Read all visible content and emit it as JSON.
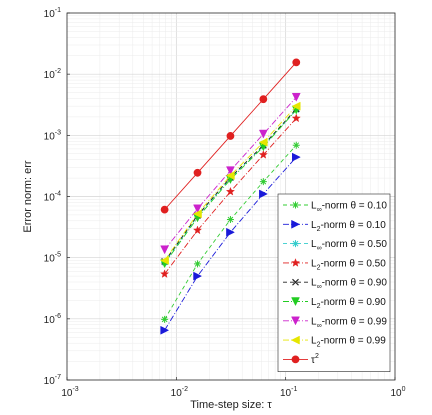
{
  "chart_data": {
    "type": "line",
    "xscale": "log",
    "yscale": "log",
    "xlim": [
      0.001,
      1
    ],
    "ylim": [
      1e-07,
      0.1
    ],
    "grid": true,
    "minor_grid": true,
    "legend_position": "bottom-right",
    "xlabel": "Time-step size: τ",
    "ylabel": "Error norm: err",
    "xticks": [
      {
        "value": 0.001,
        "base": "10",
        "exp": "-3"
      },
      {
        "value": 0.01,
        "base": "10",
        "exp": "-2"
      },
      {
        "value": 0.1,
        "base": "10",
        "exp": "-1"
      },
      {
        "value": 1,
        "base": "10",
        "exp": "0"
      }
    ],
    "yticks": [
      {
        "value": 1e-07,
        "base": "10",
        "exp": "-7"
      },
      {
        "value": 1e-06,
        "base": "10",
        "exp": "-6"
      },
      {
        "value": 1e-05,
        "base": "10",
        "exp": "-5"
      },
      {
        "value": 0.0001,
        "base": "10",
        "exp": "-4"
      },
      {
        "value": 0.001,
        "base": "10",
        "exp": "-3"
      },
      {
        "value": 0.01,
        "base": "10",
        "exp": "-2"
      },
      {
        "value": 0.1,
        "base": "10",
        "exp": "-1"
      }
    ],
    "x": [
      0.0078125,
      0.015625,
      0.03125,
      0.0625,
      0.125
    ],
    "series": [
      {
        "name": "L∞-norm θ = 0.10",
        "base": "L",
        "sub": "∞",
        "suffix": "-norm θ = 0.10",
        "color": "#33cc33",
        "dash": "4,3",
        "marker": "asterisk",
        "values": [
          9.8e-07,
          7.9e-06,
          4.2e-05,
          0.000175,
          0.00069
        ]
      },
      {
        "name": "L2-norm θ = 0.10",
        "base": "L",
        "sub": "2",
        "suffix": "-norm θ = 0.10",
        "color": "#1a1ad9",
        "dash": "6,2,1,2",
        "marker": "triangle-right",
        "values": [
          6.5e-07,
          5e-06,
          2.6e-05,
          0.00011,
          0.00044
        ]
      },
      {
        "name": "L∞-norm θ = 0.50",
        "base": "L",
        "sub": "∞",
        "suffix": "-norm θ = 0.50",
        "color": "#33cccc",
        "dash": "4,3",
        "marker": "asterisk",
        "values": [
          8.3e-06,
          4.8e-05,
          0.0002,
          0.00067,
          0.0026
        ]
      },
      {
        "name": "L2-norm θ = 0.50",
        "base": "L",
        "sub": "2",
        "suffix": "-norm θ = 0.50",
        "color": "#e02020",
        "dash": "6,2,1,2",
        "marker": "star",
        "values": [
          5.4e-06,
          2.8e-05,
          0.00012,
          0.00048,
          0.0019
        ]
      },
      {
        "name": "L∞-norm θ = 0.90",
        "base": "L",
        "sub": "∞",
        "suffix": "-norm θ = 0.90",
        "color": "#222222",
        "dash": "4,3",
        "marker": "x",
        "values": [
          8.7e-06,
          4.9e-05,
          0.000205,
          0.00069,
          0.0027
        ]
      },
      {
        "name": "L2-norm θ = 0.90",
        "base": "L",
        "sub": "2",
        "suffix": "-norm θ = 0.90",
        "color": "#22cc22",
        "dash": "6,2,1,2",
        "marker": "triangle-down",
        "values": [
          8e-06,
          4.5e-05,
          0.00019,
          0.00065,
          0.0026
        ]
      },
      {
        "name": "L∞-norm θ = 0.99",
        "base": "L",
        "sub": "∞",
        "suffix": "-norm θ = 0.99",
        "color": "#cc22cc",
        "dash": "6,2,1,2",
        "marker": "triangle-down",
        "values": [
          1.35e-05,
          6.3e-05,
          0.000265,
          0.00105,
          0.0042
        ]
      },
      {
        "name": "L2-norm θ = 0.99",
        "base": "L",
        "sub": "2",
        "suffix": "-norm θ = 0.99",
        "color": "#e6e600",
        "dash": "6,2,1,2",
        "marker": "triangle-left",
        "values": [
          9e-06,
          5.2e-05,
          0.00022,
          0.00077,
          0.003
        ]
      },
      {
        "name": "τ^2",
        "base": "τ",
        "sup": "2",
        "suffix": "",
        "color": "#e02020",
        "dash": "",
        "marker": "circle",
        "values": [
          6.1e-05,
          0.000244,
          0.000977,
          0.0039,
          0.0156
        ]
      }
    ]
  }
}
